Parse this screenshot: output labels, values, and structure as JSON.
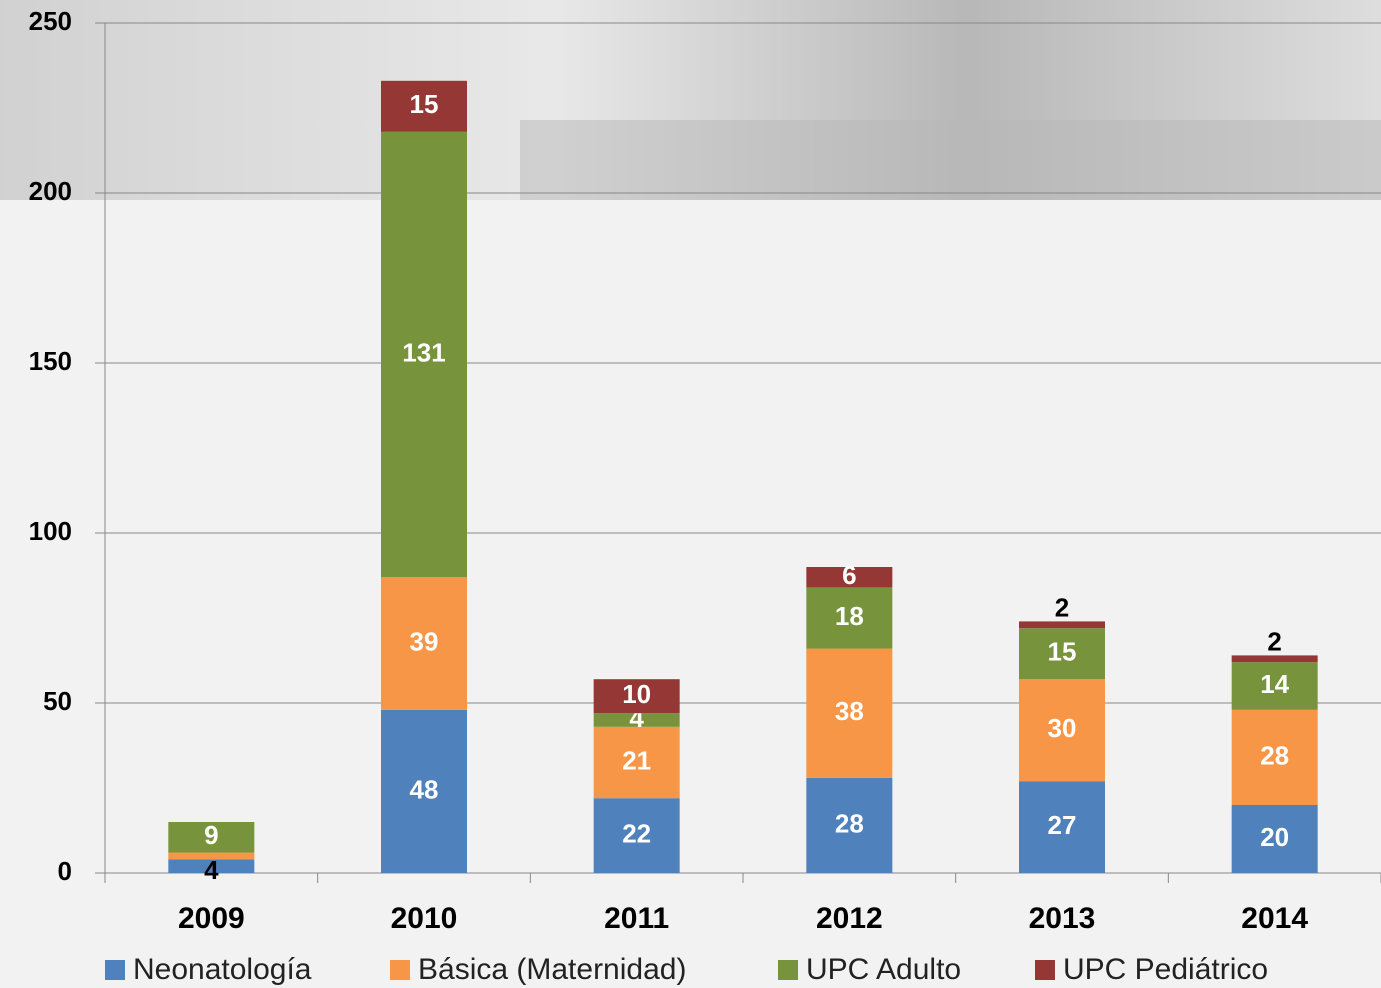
{
  "chart_data": {
    "type": "stacked_bar",
    "categories": [
      "2009",
      "2010",
      "2011",
      "2012",
      "2013",
      "2014"
    ],
    "series": [
      {
        "name": "Neonatología",
        "color": "#4f81bd",
        "values": [
          4,
          48,
          22,
          28,
          27,
          20
        ]
      },
      {
        "name": "Básica (Maternidad)",
        "color": "#f79646",
        "values": [
          2,
          39,
          21,
          38,
          30,
          28
        ],
        "value_labels": [
          null,
          "39",
          "21",
          "38",
          "30",
          "28"
        ]
      },
      {
        "name": "UPC Adulto",
        "color": "#77933c",
        "values": [
          9,
          131,
          4,
          18,
          15,
          14
        ]
      },
      {
        "name": "UPC Pediátrico",
        "color": "#953735",
        "values": [
          null,
          15,
          10,
          6,
          2,
          2
        ]
      }
    ],
    "ylim": [
      0,
      250
    ],
    "yticks": [
      0,
      50,
      100,
      150,
      200,
      250
    ],
    "grid": true,
    "legend": "bottom"
  }
}
